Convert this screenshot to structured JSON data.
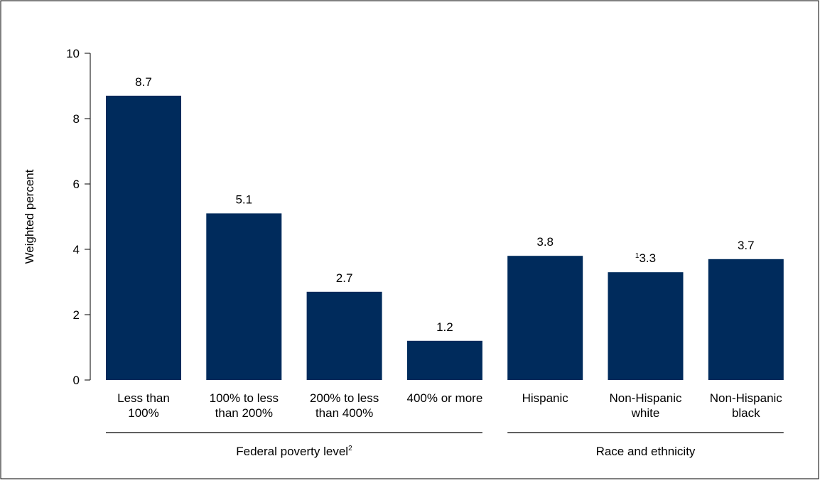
{
  "chart_data": {
    "type": "bar",
    "ylabel": "Weighted percent",
    "ylim": [
      0,
      10
    ],
    "yticks": [
      0,
      2,
      4,
      6,
      8,
      10
    ],
    "grid": false,
    "bar_color": "#002b5c",
    "categories": [
      "Less than 100%",
      "100% to less than 200%",
      "200% to less than 400%",
      "400% or more",
      "Hispanic",
      "Non-Hispanic white",
      "Non-Hispanic black"
    ],
    "category_label_lines": [
      [
        "Less than",
        "100%"
      ],
      [
        "100% to less",
        "than 200%"
      ],
      [
        "200% to less",
        "than 400%"
      ],
      [
        "400% or more"
      ],
      [
        "Hispanic"
      ],
      [
        "Non-Hispanic",
        "white"
      ],
      [
        "Non-Hispanic",
        "black"
      ]
    ],
    "values": [
      8.7,
      5.1,
      2.7,
      1.2,
      3.8,
      3.3,
      3.7
    ],
    "data_labels": [
      "8.7",
      "5.1",
      "2.7",
      "1.2",
      "3.8",
      "3.3",
      "3.7"
    ],
    "data_label_footnotes": [
      "",
      "",
      "",
      "",
      "",
      "1",
      ""
    ],
    "groups": [
      {
        "label": "Federal poverty level",
        "footnote": "2",
        "categories": [
          0,
          1,
          2,
          3
        ]
      },
      {
        "label": "Race and ethnicity",
        "footnote": "",
        "categories": [
          4,
          5,
          6
        ]
      }
    ]
  }
}
